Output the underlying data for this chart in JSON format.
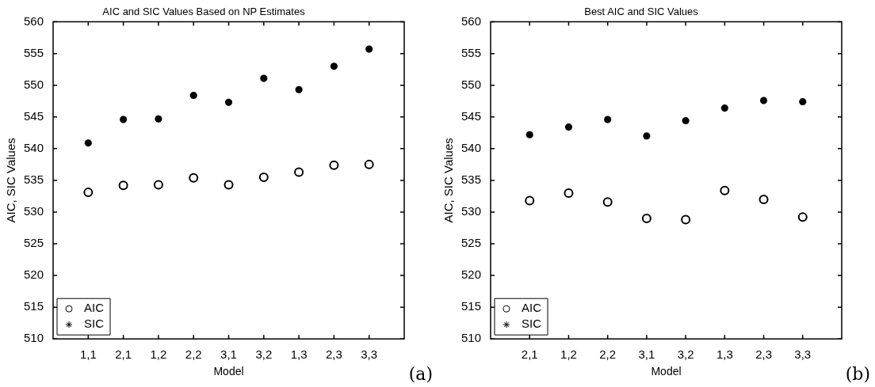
{
  "chart_data": [
    {
      "type": "scatter",
      "title": "AIC and SIC Values Based on NP Estimates",
      "xlabel": "Model",
      "ylabel": "AIC, SIC Values",
      "categories": [
        "1,1",
        "2,1",
        "1,2",
        "2,2",
        "3,1",
        "3,2",
        "1,3",
        "2,3",
        "3,3"
      ],
      "ylim": [
        510,
        560
      ],
      "yticks": [
        510,
        515,
        520,
        525,
        530,
        535,
        540,
        545,
        550,
        555,
        560
      ],
      "grid": false,
      "legend": "bottom left",
      "annotations": [
        "(a)"
      ],
      "series": [
        {
          "name": "AIC",
          "color": "#000000",
          "marker": "circle",
          "values": [
            533.1,
            534.2,
            534.3,
            535.4,
            534.3,
            535.5,
            536.3,
            537.4,
            537.5
          ]
        },
        {
          "name": "SIC",
          "color": "#000000",
          "marker": "cross",
          "values": [
            540.9,
            544.6,
            544.7,
            548.4,
            547.3,
            551.1,
            549.3,
            553.0,
            555.7
          ]
        }
      ]
    },
    {
      "type": "scatter",
      "title": "Best AIC and SIC Values",
      "xlabel": "Model",
      "ylabel": "AIC, SIC Values",
      "categories": [
        "2,1",
        "1,2",
        "2,2",
        "3,1",
        "3,2",
        "1,3",
        "2,3",
        "3,3"
      ],
      "ylim": [
        510,
        560
      ],
      "yticks": [
        510,
        515,
        520,
        525,
        530,
        535,
        540,
        545,
        550,
        555,
        560
      ],
      "grid": false,
      "legend": "bottom left",
      "annotations": [
        "(b)"
      ],
      "series": [
        {
          "name": "AIC",
          "color": "#000000",
          "marker": "circle",
          "values": [
            531.8,
            533.0,
            531.6,
            529.0,
            528.8,
            533.4,
            532.0,
            529.2
          ]
        },
        {
          "name": "SIC",
          "color": "#000000",
          "marker": "cross",
          "values": [
            542.2,
            543.4,
            544.6,
            542.0,
            544.4,
            546.4,
            547.6,
            547.4
          ]
        }
      ]
    }
  ]
}
